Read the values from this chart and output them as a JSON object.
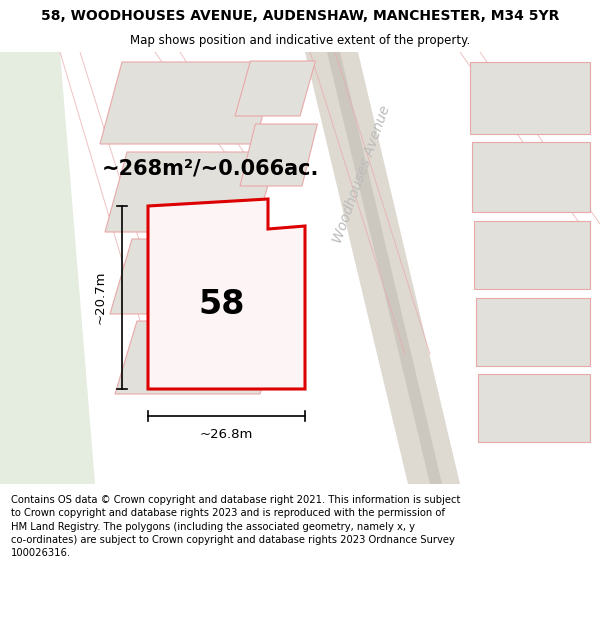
{
  "title": "58, WOODHOUSES AVENUE, AUDENSHAW, MANCHESTER, M34 5YR",
  "subtitle": "Map shows position and indicative extent of the property.",
  "footer": "Contains OS data © Crown copyright and database right 2021. This information is subject\nto Crown copyright and database rights 2023 and is reproduced with the permission of\nHM Land Registry. The polygons (including the associated geometry, namely x, y\nco-ordinates) are subject to Crown copyright and database rights 2023 Ordnance Survey\n100026316.",
  "area_label": "~268m²/~0.066ac.",
  "number_label": "58",
  "dim_width": "~26.8m",
  "dim_height": "~20.7m",
  "street_label": "Woodhouses Avenue",
  "map_bg": "#f2f0eb",
  "plot_fill": "#fdf5f5",
  "plot_edge": "#dd0000",
  "neighbor_fill": "#e2e0db",
  "neighbor_edge": "#e8a8a8",
  "green_fill": "#e5ece0",
  "road_fill": "#eeebe4",
  "title_fontsize": 10,
  "subtitle_fontsize": 8.5,
  "footer_fontsize": 7.2,
  "area_fontsize": 15,
  "number_fontsize": 24,
  "dim_fontsize": 9.5,
  "street_fontsize": 10
}
